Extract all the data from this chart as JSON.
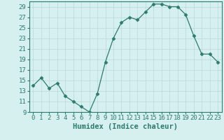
{
  "x": [
    0,
    1,
    2,
    3,
    4,
    5,
    6,
    7,
    8,
    9,
    10,
    11,
    12,
    13,
    14,
    15,
    16,
    17,
    18,
    19,
    20,
    21,
    22,
    23
  ],
  "y": [
    14,
    15.5,
    13.5,
    14.5,
    12,
    11,
    10,
    9,
    12.5,
    18.5,
    23,
    26,
    27,
    26.5,
    28,
    29.5,
    29.5,
    29,
    29,
    27.5,
    23.5,
    20,
    20,
    18.5
  ],
  "xlabel": "Humidex (Indice chaleur)",
  "ylim": [
    9,
    30
  ],
  "yticks": [
    9,
    11,
    13,
    15,
    17,
    19,
    21,
    23,
    25,
    27,
    29
  ],
  "xticks": [
    0,
    1,
    2,
    3,
    4,
    5,
    6,
    7,
    8,
    9,
    10,
    11,
    12,
    13,
    14,
    15,
    16,
    17,
    18,
    19,
    20,
    21,
    22,
    23
  ],
  "line_color": "#2d7a6e",
  "marker": "D",
  "marker_size": 2.5,
  "bg_color": "#d6f0f0",
  "grid_color": "#b8d8d8",
  "xlabel_fontsize": 7.5,
  "tick_fontsize": 6.5
}
